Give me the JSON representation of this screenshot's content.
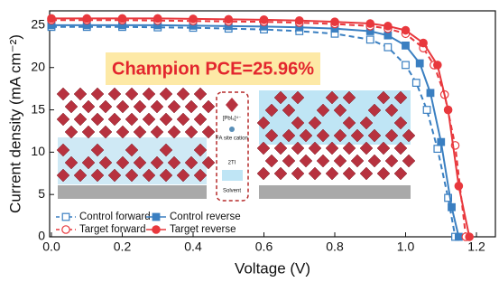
{
  "chart_data": {
    "type": "line",
    "x_label": "Voltage (V)",
    "y_label": "Current density (mA cm⁻²)",
    "annotation": "Champion PCE=25.96%",
    "inset_labels": [
      "[PbI₆]⁴⁻",
      "FA site cation",
      "2TI",
      "Solvent"
    ],
    "xlim": [
      0,
      1.25
    ],
    "ylim": [
      0,
      26.7
    ],
    "xticks": [
      {
        "value": 0,
        "label": "0.0"
      },
      0.2,
      0.4,
      0.6,
      0.8,
      {
        "value": 1,
        "label": "1.0"
      },
      1.2
    ],
    "yticks": [
      0,
      5,
      10,
      15,
      20,
      25
    ],
    "grid": false,
    "legend": "lower left",
    "series": [
      {
        "name": "Control forward",
        "color": "#3a7fc1",
        "marker": "square",
        "filled": false,
        "dashed": true,
        "x": [
          0,
          0.1,
          0.2,
          0.3,
          0.4,
          0.5,
          0.6,
          0.7,
          0.8,
          0.9,
          0.95,
          1.0,
          1.03,
          1.06,
          1.09,
          1.12,
          1.14
        ],
        "values": [
          24.8,
          24.8,
          24.8,
          24.75,
          24.7,
          24.6,
          24.5,
          24.3,
          24.0,
          23.3,
          22.4,
          20.3,
          18.2,
          15.0,
          10.4,
          4.6,
          0
        ]
      },
      {
        "name": "Control reverse",
        "color": "#3a7fc1",
        "marker": "square",
        "filled": true,
        "dashed": false,
        "x": [
          0,
          0.1,
          0.2,
          0.3,
          0.4,
          0.5,
          0.6,
          0.7,
          0.8,
          0.9,
          0.95,
          1.0,
          1.04,
          1.07,
          1.1,
          1.13,
          1.15
        ],
        "values": [
          25.0,
          25.0,
          25.0,
          25.0,
          24.95,
          24.9,
          24.85,
          24.75,
          24.6,
          24.3,
          23.8,
          22.6,
          20.5,
          17.0,
          11.2,
          3.5,
          0
        ]
      },
      {
        "name": "Target  forward",
        "color": "#e8383d",
        "marker": "circle",
        "filled": false,
        "dashed": true,
        "x": [
          0,
          0.1,
          0.2,
          0.3,
          0.4,
          0.5,
          0.6,
          0.7,
          0.8,
          0.9,
          0.95,
          1.0,
          1.05,
          1.08,
          1.11,
          1.14,
          1.17
        ],
        "values": [
          25.6,
          25.6,
          25.6,
          25.55,
          25.5,
          25.45,
          25.4,
          25.3,
          25.15,
          24.9,
          24.6,
          24.0,
          22.3,
          20.3,
          16.8,
          10.8,
          0
        ]
      },
      {
        "name": "Target reverse",
        "color": "#e8383d",
        "marker": "circle",
        "filled": true,
        "dashed": false,
        "x": [
          0,
          0.1,
          0.2,
          0.3,
          0.4,
          0.5,
          0.6,
          0.7,
          0.8,
          0.9,
          0.95,
          1.0,
          1.05,
          1.09,
          1.12,
          1.15,
          1.18
        ],
        "values": [
          25.8,
          25.8,
          25.8,
          25.8,
          25.75,
          25.7,
          25.65,
          25.55,
          25.4,
          25.2,
          24.9,
          24.4,
          22.9,
          20.3,
          15.0,
          6.0,
          0
        ]
      }
    ]
  }
}
